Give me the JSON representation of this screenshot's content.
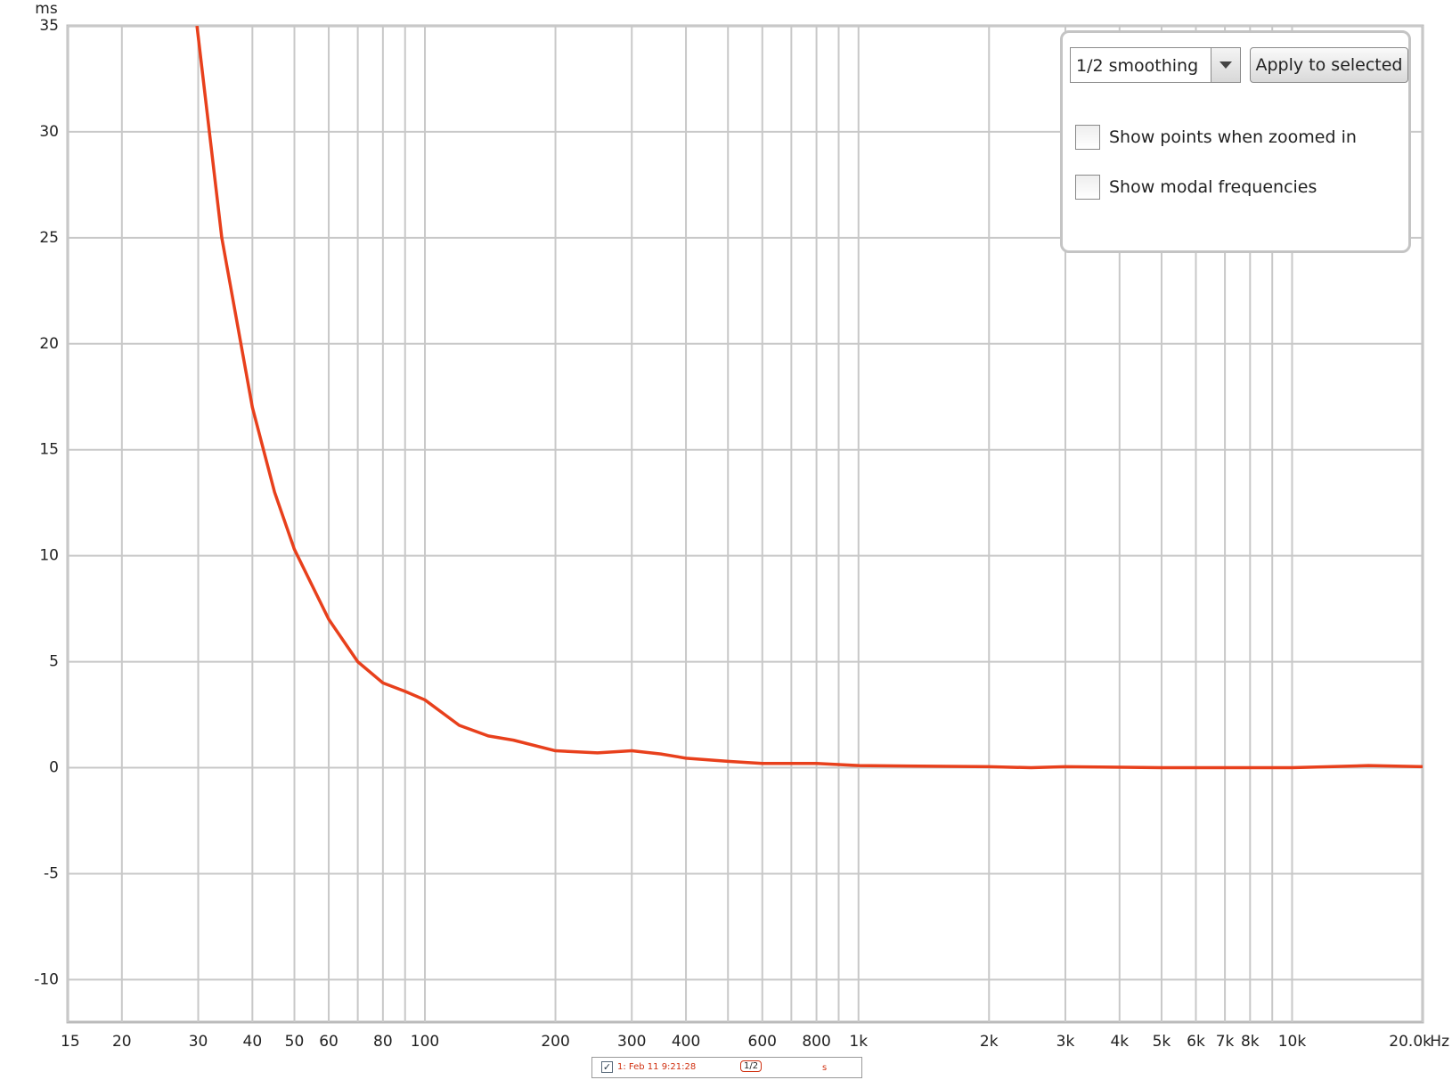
{
  "chart_data": {
    "type": "line",
    "x_unit": "Hz",
    "y_unit": "ms",
    "xlim": [
      15,
      20000
    ],
    "ylim": [
      -12,
      35
    ],
    "log_x": true,
    "grid": true,
    "xticks": [
      15,
      20,
      30,
      40,
      50,
      60,
      80,
      100,
      200,
      300,
      400,
      600,
      800,
      {
        "value": 1000,
        "label": "1k"
      },
      {
        "value": 2000,
        "label": "2k"
      },
      {
        "value": 3000,
        "label": "3k"
      },
      {
        "value": 4000,
        "label": "4k"
      },
      {
        "value": 5000,
        "label": "5k"
      },
      {
        "value": 6000,
        "label": "6k"
      },
      {
        "value": 7000,
        "label": "7k"
      },
      {
        "value": 8000,
        "label": "8k"
      },
      {
        "value": 10000,
        "label": "10k"
      },
      {
        "value": 20000,
        "label": "20.0k"
      }
    ],
    "xminor": [
      70,
      90,
      500,
      700,
      900,
      9000
    ],
    "yticks": [
      -10,
      -5,
      0,
      5,
      10,
      15,
      20,
      25,
      30,
      35
    ],
    "x": [
      29.8,
      34,
      40,
      45,
      50,
      60,
      70,
      80,
      90,
      100,
      120,
      140,
      160,
      200,
      250,
      300,
      350,
      400,
      500,
      600,
      800,
      1000,
      2000,
      2500,
      3000,
      5000,
      10000,
      15000,
      20000
    ],
    "series": [
      {
        "name": "1: Feb 11 9:21:28",
        "color": "#e8401c",
        "values": [
          35,
          25,
          17,
          13,
          10.3,
          7,
          5,
          4,
          3.6,
          3.2,
          2,
          1.5,
          1.3,
          0.8,
          0.7,
          0.8,
          0.65,
          0.45,
          0.3,
          0.2,
          0.2,
          0.1,
          0.05,
          0,
          0.05,
          0,
          0,
          0.1,
          0.05
        ]
      }
    ],
    "legend_smoothing": "1/2",
    "legend_tail": "s"
  },
  "controls": {
    "smoothing": "1/2 smoothing",
    "apply_button": "Apply to selected",
    "checkboxes": [
      "Show points when zoomed in",
      "Show modal frequencies"
    ]
  }
}
